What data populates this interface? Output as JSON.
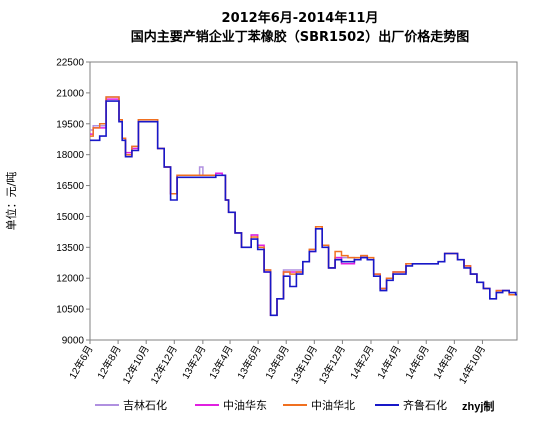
{
  "chart_data": {
    "type": "line",
    "title": "2012年6月-2014年11月",
    "subtitle": "国内主要产销企业丁苯橡胶（SBR1502）出厂价格走势图",
    "ylabel": "单位：元/吨",
    "xlabel": "",
    "ylim": [
      9000,
      22500
    ],
    "yticks": [
      9000,
      10500,
      12000,
      13500,
      15000,
      16500,
      18000,
      19500,
      21000,
      22500
    ],
    "xlim": [
      "2012-06-01",
      "2014-12-15"
    ],
    "xticks": [
      {
        "date": "2012-06-01",
        "label": "12年6月"
      },
      {
        "date": "2012-08-01",
        "label": "12年8月"
      },
      {
        "date": "2012-10-01",
        "label": "12年10月"
      },
      {
        "date": "2012-12-01",
        "label": "12年12月"
      },
      {
        "date": "2013-02-01",
        "label": "13年2月"
      },
      {
        "date": "2013-04-01",
        "label": "13年4月"
      },
      {
        "date": "2013-06-01",
        "label": "13年6月"
      },
      {
        "date": "2013-08-01",
        "label": "13年8月"
      },
      {
        "date": "2013-10-01",
        "label": "13年10月"
      },
      {
        "date": "2013-12-01",
        "label": "13年12月"
      },
      {
        "date": "2014-02-01",
        "label": "14年2月"
      },
      {
        "date": "2014-04-01",
        "label": "14年4月"
      },
      {
        "date": "2014-06-01",
        "label": "14年6月"
      },
      {
        "date": "2014-08-01",
        "label": "14年8月"
      },
      {
        "date": "2014-10-01",
        "label": "14年10月"
      }
    ],
    "grid": false,
    "legend_position": "bottom",
    "source": "zhyj制",
    "series": [
      {
        "name": "吉林石化",
        "color": "#b090e0",
        "x": [
          "2012-06-01",
          "2012-06-08",
          "2012-06-22",
          "2012-07-06",
          "2012-07-20",
          "2012-08-03",
          "2012-08-10",
          "2012-08-17",
          "2012-08-31",
          "2012-09-14",
          "2012-09-28",
          "2012-10-12",
          "2012-10-26",
          "2012-11-09",
          "2012-11-23",
          "2012-12-07",
          "2012-12-21",
          "2013-01-04",
          "2013-01-18",
          "2013-01-25",
          "2013-02-01",
          "2013-02-15",
          "2013-03-01",
          "2013-03-15",
          "2013-03-22",
          "2013-03-29",
          "2013-04-12",
          "2013-04-26",
          "2013-05-03",
          "2013-05-17",
          "2013-05-31",
          "2013-06-14",
          "2013-06-28",
          "2013-07-12",
          "2013-07-26",
          "2013-08-09",
          "2013-08-23",
          "2013-09-06",
          "2013-09-20",
          "2013-10-04",
          "2013-10-18",
          "2013-11-01",
          "2013-11-15",
          "2013-11-29",
          "2013-12-13",
          "2013-12-27",
          "2014-01-10",
          "2014-01-24",
          "2014-02-07",
          "2014-02-21",
          "2014-03-07",
          "2014-03-21",
          "2014-04-04",
          "2014-04-18",
          "2014-05-02",
          "2014-05-16",
          "2014-05-30",
          "2014-06-13",
          "2014-06-27",
          "2014-07-11",
          "2014-07-25",
          "2014-08-08",
          "2014-08-22",
          "2014-09-05",
          "2014-09-19",
          "2014-10-03",
          "2014-10-17",
          "2014-10-31",
          "2014-11-14",
          "2014-11-28",
          "2014-12-12"
        ],
        "values": [
          19200,
          19400,
          19400,
          20800,
          20800,
          19600,
          18700,
          18000,
          18400,
          19700,
          19700,
          19700,
          18300,
          17400,
          16100,
          17000,
          17000,
          17000,
          17000,
          17400,
          17000,
          17000,
          17000,
          17000,
          15800,
          15200,
          14200,
          13500,
          13500,
          14100,
          13500,
          12400,
          10200,
          11000,
          12400,
          12400,
          12400,
          12800,
          13400,
          14500,
          13600,
          12500,
          13000,
          13000,
          13000,
          12900,
          13100,
          12900,
          12200,
          11500,
          12000,
          12300,
          12300,
          12700,
          12700,
          12700,
          12700,
          12700,
          12800,
          13200,
          13200,
          12900,
          12600,
          12200,
          11800,
          11500,
          11000,
          11400,
          11400,
          11200,
          11200
        ]
      },
      {
        "name": "中油华东",
        "color": "#e020e0",
        "x": [
          "2012-06-01",
          "2012-06-08",
          "2012-06-22",
          "2012-07-06",
          "2012-07-20",
          "2012-08-03",
          "2012-08-10",
          "2012-08-17",
          "2012-08-31",
          "2012-09-14",
          "2012-09-28",
          "2012-10-12",
          "2012-10-26",
          "2012-11-09",
          "2012-11-23",
          "2012-12-07",
          "2012-12-21",
          "2013-01-04",
          "2013-01-18",
          "2013-01-25",
          "2013-02-01",
          "2013-02-15",
          "2013-03-01",
          "2013-03-15",
          "2013-03-22",
          "2013-03-29",
          "2013-04-12",
          "2013-04-26",
          "2013-05-03",
          "2013-05-17",
          "2013-05-31",
          "2013-06-14",
          "2013-06-28",
          "2013-07-12",
          "2013-07-26",
          "2013-08-09",
          "2013-08-23",
          "2013-09-06",
          "2013-09-20",
          "2013-10-04",
          "2013-10-18",
          "2013-11-01",
          "2013-11-15",
          "2013-11-29",
          "2013-12-13",
          "2013-12-27",
          "2014-01-10",
          "2014-01-24",
          "2014-02-07",
          "2014-02-21",
          "2014-03-07",
          "2014-03-21",
          "2014-04-04",
          "2014-04-18",
          "2014-05-02",
          "2014-05-16",
          "2014-05-30",
          "2014-06-13",
          "2014-06-27",
          "2014-07-11",
          "2014-07-25",
          "2014-08-08",
          "2014-08-22",
          "2014-09-05",
          "2014-09-19",
          "2014-10-03",
          "2014-10-17",
          "2014-10-31",
          "2014-11-14",
          "2014-11-28",
          "2014-12-12"
        ],
        "values": [
          19000,
          19300,
          19300,
          20700,
          20700,
          19700,
          18800,
          18100,
          18300,
          19600,
          19600,
          19600,
          18300,
          17400,
          16100,
          17000,
          17000,
          17000,
          17000,
          17000,
          17000,
          17000,
          17100,
          17000,
          15800,
          15200,
          14200,
          13500,
          13500,
          14100,
          13600,
          12300,
          10200,
          11000,
          12300,
          12300,
          12300,
          12800,
          13300,
          14500,
          13500,
          12500,
          13000,
          12700,
          12700,
          12900,
          13000,
          12900,
          12200,
          11500,
          12000,
          12300,
          12300,
          12700,
          12700,
          12700,
          12700,
          12700,
          12800,
          13200,
          13200,
          12900,
          12600,
          12200,
          11800,
          11500,
          11000,
          11400,
          11400,
          11200,
          11200
        ]
      },
      {
        "name": "中油华北",
        "color": "#f07020",
        "x": [
          "2012-06-01",
          "2012-06-08",
          "2012-06-22",
          "2012-07-06",
          "2012-07-20",
          "2012-08-03",
          "2012-08-10",
          "2012-08-17",
          "2012-08-31",
          "2012-09-14",
          "2012-09-28",
          "2012-10-12",
          "2012-10-26",
          "2012-11-09",
          "2012-11-23",
          "2012-12-07",
          "2012-12-21",
          "2013-01-04",
          "2013-01-18",
          "2013-01-25",
          "2013-02-01",
          "2013-02-15",
          "2013-03-01",
          "2013-03-15",
          "2013-03-22",
          "2013-03-29",
          "2013-04-12",
          "2013-04-26",
          "2013-05-03",
          "2013-05-17",
          "2013-05-31",
          "2013-06-14",
          "2013-06-28",
          "2013-07-12",
          "2013-07-26",
          "2013-08-09",
          "2013-08-23",
          "2013-09-06",
          "2013-09-20",
          "2013-10-04",
          "2013-10-18",
          "2013-11-01",
          "2013-11-15",
          "2013-11-29",
          "2013-12-13",
          "2013-12-27",
          "2014-01-10",
          "2014-01-24",
          "2014-02-07",
          "2014-02-21",
          "2014-03-07",
          "2014-03-21",
          "2014-04-04",
          "2014-04-18",
          "2014-05-02",
          "2014-05-16",
          "2014-05-30",
          "2014-06-13",
          "2014-06-27",
          "2014-07-11",
          "2014-07-25",
          "2014-08-08",
          "2014-08-22",
          "2014-09-05",
          "2014-09-19",
          "2014-10-03",
          "2014-10-17",
          "2014-10-31",
          "2014-11-14",
          "2014-11-28",
          "2014-12-12"
        ],
        "values": [
          18900,
          19300,
          19500,
          20800,
          20800,
          19700,
          18800,
          18000,
          18400,
          19700,
          19700,
          19700,
          18300,
          17400,
          16100,
          17000,
          17000,
          17000,
          17000,
          17000,
          17000,
          17000,
          17000,
          17000,
          15800,
          15200,
          14200,
          13500,
          13500,
          14000,
          13500,
          12400,
          10200,
          11000,
          12300,
          12200,
          12300,
          12800,
          13400,
          14500,
          13600,
          12500,
          13300,
          13100,
          13000,
          13000,
          13100,
          13000,
          12200,
          11500,
          12000,
          12300,
          12300,
          12700,
          12700,
          12700,
          12700,
          12700,
          12800,
          13200,
          13200,
          12900,
          12600,
          12200,
          11800,
          11500,
          11000,
          11400,
          11400,
          11200,
          11200
        ]
      },
      {
        "name": "齐鲁石化",
        "color": "#1818c8",
        "x": [
          "2012-06-01",
          "2012-06-08",
          "2012-06-22",
          "2012-07-06",
          "2012-07-20",
          "2012-08-03",
          "2012-08-10",
          "2012-08-17",
          "2012-08-31",
          "2012-09-14",
          "2012-09-28",
          "2012-10-12",
          "2012-10-26",
          "2012-11-09",
          "2012-11-23",
          "2012-12-07",
          "2012-12-21",
          "2013-01-04",
          "2013-01-18",
          "2013-01-25",
          "2013-02-01",
          "2013-02-15",
          "2013-03-01",
          "2013-03-15",
          "2013-03-22",
          "2013-03-29",
          "2013-04-12",
          "2013-04-26",
          "2013-05-03",
          "2013-05-17",
          "2013-05-31",
          "2013-06-14",
          "2013-06-28",
          "2013-07-12",
          "2013-07-26",
          "2013-08-09",
          "2013-08-23",
          "2013-09-06",
          "2013-09-20",
          "2013-10-04",
          "2013-10-18",
          "2013-11-01",
          "2013-11-15",
          "2013-11-29",
          "2013-12-13",
          "2013-12-27",
          "2014-01-10",
          "2014-01-24",
          "2014-02-07",
          "2014-02-21",
          "2014-03-07",
          "2014-03-21",
          "2014-04-04",
          "2014-04-18",
          "2014-05-02",
          "2014-05-16",
          "2014-05-30",
          "2014-06-13",
          "2014-06-27",
          "2014-07-11",
          "2014-07-25",
          "2014-08-08",
          "2014-08-22",
          "2014-09-05",
          "2014-09-19",
          "2014-10-03",
          "2014-10-17",
          "2014-10-31",
          "2014-11-14",
          "2014-11-28",
          "2014-12-12"
        ],
        "values": [
          18700,
          18700,
          18900,
          20600,
          20600,
          19600,
          18700,
          17900,
          18200,
          19600,
          19600,
          19600,
          18300,
          17400,
          15800,
          16900,
          16900,
          16900,
          16900,
          16900,
          16900,
          16900,
          17000,
          17000,
          15800,
          15200,
          14200,
          13500,
          13500,
          13900,
          13400,
          12300,
          10200,
          11000,
          12100,
          11600,
          12200,
          12800,
          13300,
          14400,
          13500,
          12500,
          12900,
          12800,
          12800,
          12900,
          13000,
          12900,
          12100,
          11400,
          11900,
          12200,
          12200,
          12600,
          12700,
          12700,
          12700,
          12700,
          12800,
          13200,
          13200,
          12900,
          12500,
          12200,
          11800,
          11500,
          11000,
          11300,
          11400,
          11300,
          11200
        ]
      }
    ]
  }
}
